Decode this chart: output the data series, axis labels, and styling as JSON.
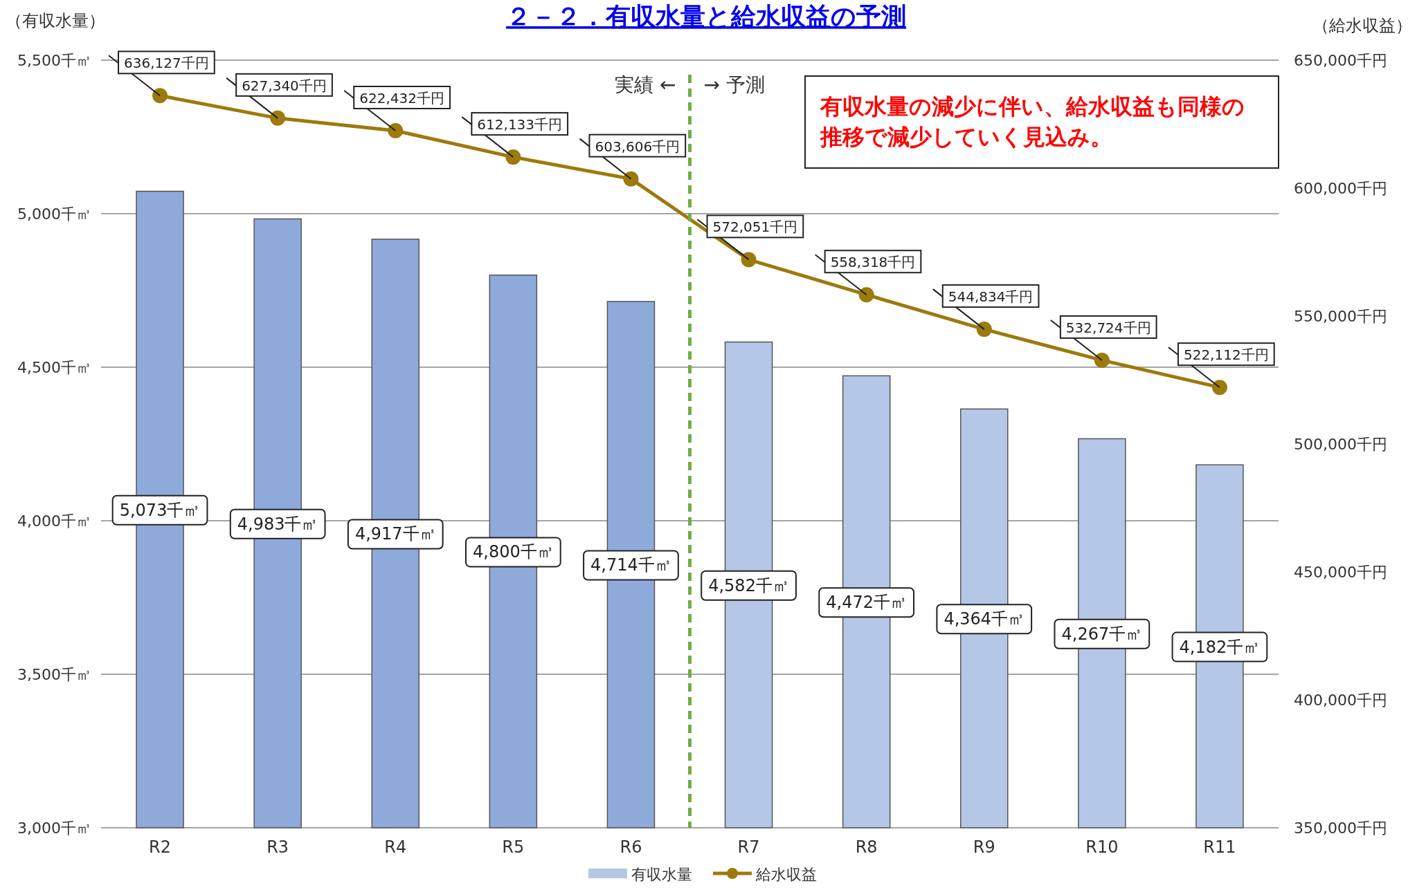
{
  "chart_data": {
    "type": "bar",
    "title": "２－２．有収水量と給水収益の予測",
    "ylabel": "（有収水量）",
    "y2label": "（給水収益）",
    "categories": [
      "R2",
      "R3",
      "R4",
      "R5",
      "R6",
      "R7",
      "R8",
      "R9",
      "R10",
      "R11"
    ],
    "series": [
      {
        "name": "有収水量",
        "color": "#b4c7e7",
        "colors": [
          "#8eaadb",
          "#8eaadb",
          "#8eaadb",
          "#8eaadb",
          "#8eaadb",
          "#b4c7e7",
          "#b4c7e7",
          "#b4c7e7",
          "#b4c7e7",
          "#b4c7e7"
        ],
        "values": [
          5073,
          4983,
          4917,
          4800,
          4714,
          4582,
          4472,
          4364,
          4267,
          4182
        ],
        "value_labels": [
          "5,073千㎥",
          "4,983千㎥",
          "4,917千㎥",
          "4,800千㎥",
          "4,714千㎥",
          "4,582千㎥",
          "4,472千㎥",
          "4,364千㎥",
          "4,267千㎥",
          "4,182千㎥"
        ]
      },
      {
        "name": "給水収益",
        "type": "line",
        "axis": "y2",
        "color": "#9c7a0c",
        "values": [
          636127,
          627340,
          622432,
          612133,
          603606,
          572051,
          558318,
          544834,
          532724,
          522112
        ],
        "value_labels": [
          "636,127千円",
          "627,340千円",
          "622,432千円",
          "612,133千円",
          "603,606千円",
          "572,051千円",
          "558,318千円",
          "544,834千円",
          "532,724千円",
          "522,112千円"
        ]
      }
    ],
    "ylim": [
      3000,
      5500
    ],
    "yticks": [
      {
        "value": 3000,
        "label": "3,000千㎥"
      },
      {
        "value": 3500,
        "label": "3,500千㎥"
      },
      {
        "value": 4000,
        "label": "4,000千㎥"
      },
      {
        "value": 4500,
        "label": "4,500千㎥"
      },
      {
        "value": 5000,
        "label": "5,000千㎥"
      },
      {
        "value": 5500,
        "label": "5,500千㎥"
      }
    ],
    "y2lim": [
      350000,
      650000
    ],
    "y2ticks": [
      {
        "value": 350000,
        "label": "350,000千円"
      },
      {
        "value": 400000,
        "label": "400,000千円"
      },
      {
        "value": 450000,
        "label": "450,000千円"
      },
      {
        "value": 500000,
        "label": "500,000千円"
      },
      {
        "value": 550000,
        "label": "550,000千円"
      },
      {
        "value": 600000,
        "label": "600,000千円"
      },
      {
        "value": 650000,
        "label": "650,000千円"
      }
    ],
    "grid": "y",
    "legend": "bottom",
    "marker": "circle",
    "annotations": [
      "実績 ←",
      "→ 予測",
      "有収水量の減少に伴い、給水収益も同様の推移で減少していく見込み。"
    ]
  }
}
